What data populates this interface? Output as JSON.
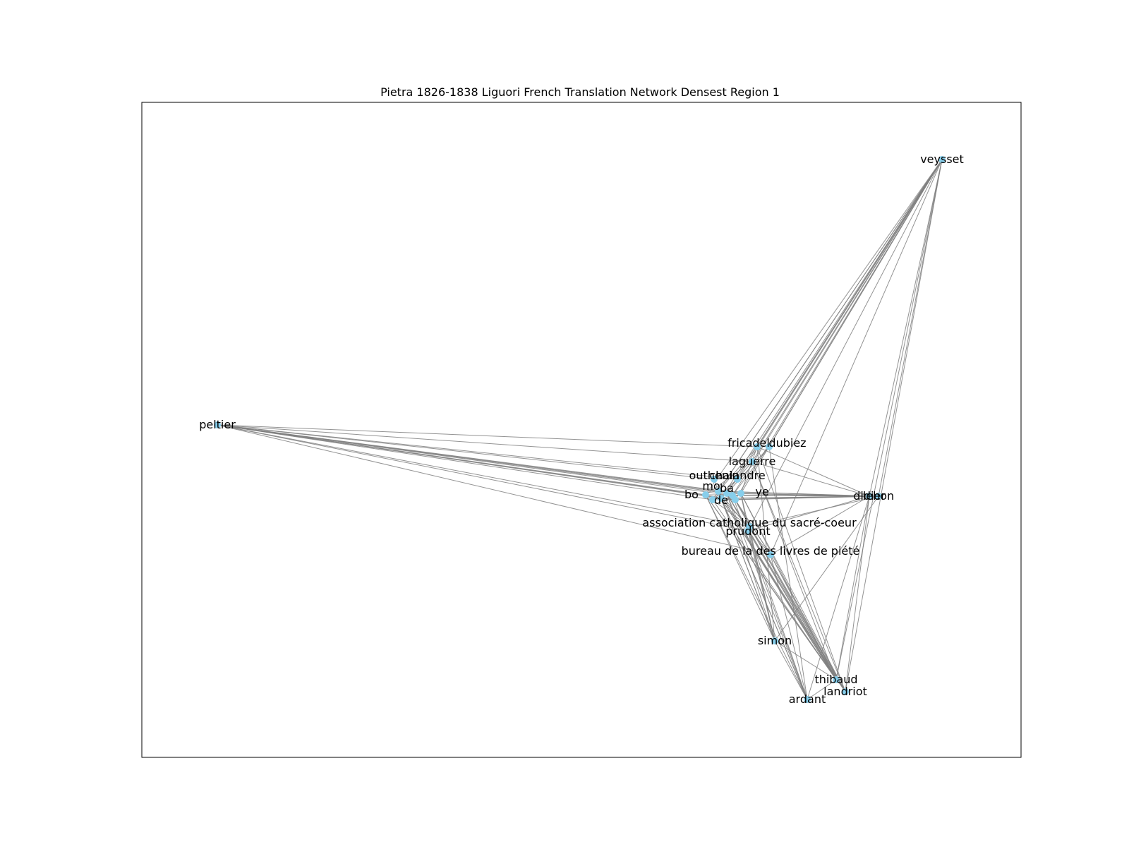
{
  "title": "Pietra 1826-1838 Liguori French Translation Network Densest Region 1",
  "colors": {
    "node": "#87ceeb",
    "edge": "#808080",
    "label": "#000000",
    "frame": "#000000"
  },
  "network": {
    "nodes": [
      {
        "id": "veysset",
        "label": "veysset"
      },
      {
        "id": "peltier",
        "label": "peltier"
      },
      {
        "id": "fricadel",
        "label": "fricadel"
      },
      {
        "id": "dubiez",
        "label": "dubiez"
      },
      {
        "id": "laguerre",
        "label": "laguerre"
      },
      {
        "id": "outhenin",
        "label": "outhenin"
      },
      {
        "id": "chalandre",
        "label": "chalandre"
      },
      {
        "id": "didier",
        "label": "didier"
      },
      {
        "id": "lebon",
        "label": "lebon"
      },
      {
        "id": "association",
        "label": "association catholique du sacré-coeur"
      },
      {
        "id": "prudont",
        "label": "prudont"
      },
      {
        "id": "bureau",
        "label": "bureau de la des livres de piété"
      },
      {
        "id": "simon",
        "label": "simon"
      },
      {
        "id": "thibaud",
        "label": "thibaud"
      },
      {
        "id": "landriot",
        "label": "landriot"
      },
      {
        "id": "ardant",
        "label": "ardant"
      },
      {
        "id": "c1",
        "label": "bo"
      },
      {
        "id": "c2",
        "label": "mo"
      },
      {
        "id": "c3",
        "label": "ba"
      },
      {
        "id": "c4",
        "label": "de"
      },
      {
        "id": "c5",
        "label": "ye"
      },
      {
        "id": "c6",
        "label": ""
      },
      {
        "id": "c7",
        "label": ""
      },
      {
        "id": "c8",
        "label": ""
      }
    ],
    "edges": [
      [
        "peltier",
        "c1"
      ],
      [
        "peltier",
        "c2"
      ],
      [
        "peltier",
        "c3"
      ],
      [
        "peltier",
        "c4"
      ],
      [
        "peltier",
        "c5"
      ],
      [
        "peltier",
        "c6"
      ],
      [
        "peltier",
        "c7"
      ],
      [
        "peltier",
        "c8"
      ],
      [
        "peltier",
        "fricadel"
      ],
      [
        "peltier",
        "laguerre"
      ],
      [
        "peltier",
        "outhenin"
      ],
      [
        "peltier",
        "chalandre"
      ],
      [
        "peltier",
        "association"
      ],
      [
        "peltier",
        "prudont"
      ],
      [
        "peltier",
        "bureau"
      ],
      [
        "veysset",
        "c1"
      ],
      [
        "veysset",
        "c2"
      ],
      [
        "veysset",
        "c3"
      ],
      [
        "veysset",
        "c4"
      ],
      [
        "veysset",
        "c5"
      ],
      [
        "veysset",
        "c6"
      ],
      [
        "veysset",
        "c7"
      ],
      [
        "veysset",
        "c8"
      ],
      [
        "veysset",
        "fricadel"
      ],
      [
        "veysset",
        "dubiez"
      ],
      [
        "veysset",
        "laguerre"
      ],
      [
        "veysset",
        "chalandre"
      ],
      [
        "veysset",
        "didier"
      ],
      [
        "veysset",
        "lebon"
      ],
      [
        "veysset",
        "bureau"
      ],
      [
        "veysset",
        "prudont"
      ],
      [
        "veysset",
        "thibaud"
      ],
      [
        "veysset",
        "landriot"
      ],
      [
        "didier",
        "c1"
      ],
      [
        "didier",
        "c2"
      ],
      [
        "didier",
        "c3"
      ],
      [
        "didier",
        "c4"
      ],
      [
        "didier",
        "c5"
      ],
      [
        "didier",
        "c6"
      ],
      [
        "lebon",
        "c7"
      ],
      [
        "lebon",
        "c8"
      ],
      [
        "lebon",
        "c2"
      ],
      [
        "lebon",
        "c4"
      ],
      [
        "didier",
        "fricadel"
      ],
      [
        "didier",
        "laguerre"
      ],
      [
        "didier",
        "prudont"
      ],
      [
        "didier",
        "bureau"
      ],
      [
        "didier",
        "ardant"
      ],
      [
        "didier",
        "landriot"
      ],
      [
        "didier",
        "thibaud"
      ],
      [
        "lebon",
        "simon"
      ],
      [
        "lebon",
        "association"
      ],
      [
        "simon",
        "c1"
      ],
      [
        "simon",
        "c2"
      ],
      [
        "simon",
        "c3"
      ],
      [
        "simon",
        "c4"
      ],
      [
        "simon",
        "c5"
      ],
      [
        "simon",
        "prudont"
      ],
      [
        "simon",
        "fricadel"
      ],
      [
        "simon",
        "association"
      ],
      [
        "thibaud",
        "c1"
      ],
      [
        "thibaud",
        "c2"
      ],
      [
        "thibaud",
        "c3"
      ],
      [
        "thibaud",
        "c4"
      ],
      [
        "thibaud",
        "c5"
      ],
      [
        "thibaud",
        "c6"
      ],
      [
        "thibaud",
        "c7"
      ],
      [
        "thibaud",
        "prudont"
      ],
      [
        "thibaud",
        "bureau"
      ],
      [
        "thibaud",
        "laguerre"
      ],
      [
        "thibaud",
        "simon"
      ],
      [
        "landriot",
        "c1"
      ],
      [
        "landriot",
        "c2"
      ],
      [
        "landriot",
        "c3"
      ],
      [
        "landriot",
        "c4"
      ],
      [
        "landriot",
        "c5"
      ],
      [
        "landriot",
        "c8"
      ],
      [
        "landriot",
        "bureau"
      ],
      [
        "landriot",
        "association"
      ],
      [
        "landriot",
        "laguerre"
      ],
      [
        "landriot",
        "fricadel"
      ],
      [
        "ardant",
        "c1"
      ],
      [
        "ardant",
        "c2"
      ],
      [
        "ardant",
        "c3"
      ],
      [
        "ardant",
        "c4"
      ],
      [
        "ardant",
        "c6"
      ],
      [
        "ardant",
        "prudont"
      ],
      [
        "ardant",
        "bureau"
      ],
      [
        "ardant",
        "simon"
      ],
      [
        "ardant",
        "thibaud"
      ],
      [
        "ardant",
        "dubiez"
      ],
      [
        "fricadel",
        "c2"
      ],
      [
        "fricadel",
        "c5"
      ],
      [
        "dubiez",
        "c3"
      ],
      [
        "dubiez",
        "c6"
      ],
      [
        "laguerre",
        "c1"
      ],
      [
        "laguerre",
        "c4"
      ],
      [
        "outhenin",
        "c2"
      ],
      [
        "chalandre",
        "c7"
      ],
      [
        "association",
        "c1"
      ],
      [
        "association",
        "c4"
      ],
      [
        "prudont",
        "c3"
      ],
      [
        "prudont",
        "c5"
      ],
      [
        "bureau",
        "c2"
      ],
      [
        "bureau",
        "c6"
      ],
      [
        "bureau",
        "c8"
      ]
    ]
  }
}
